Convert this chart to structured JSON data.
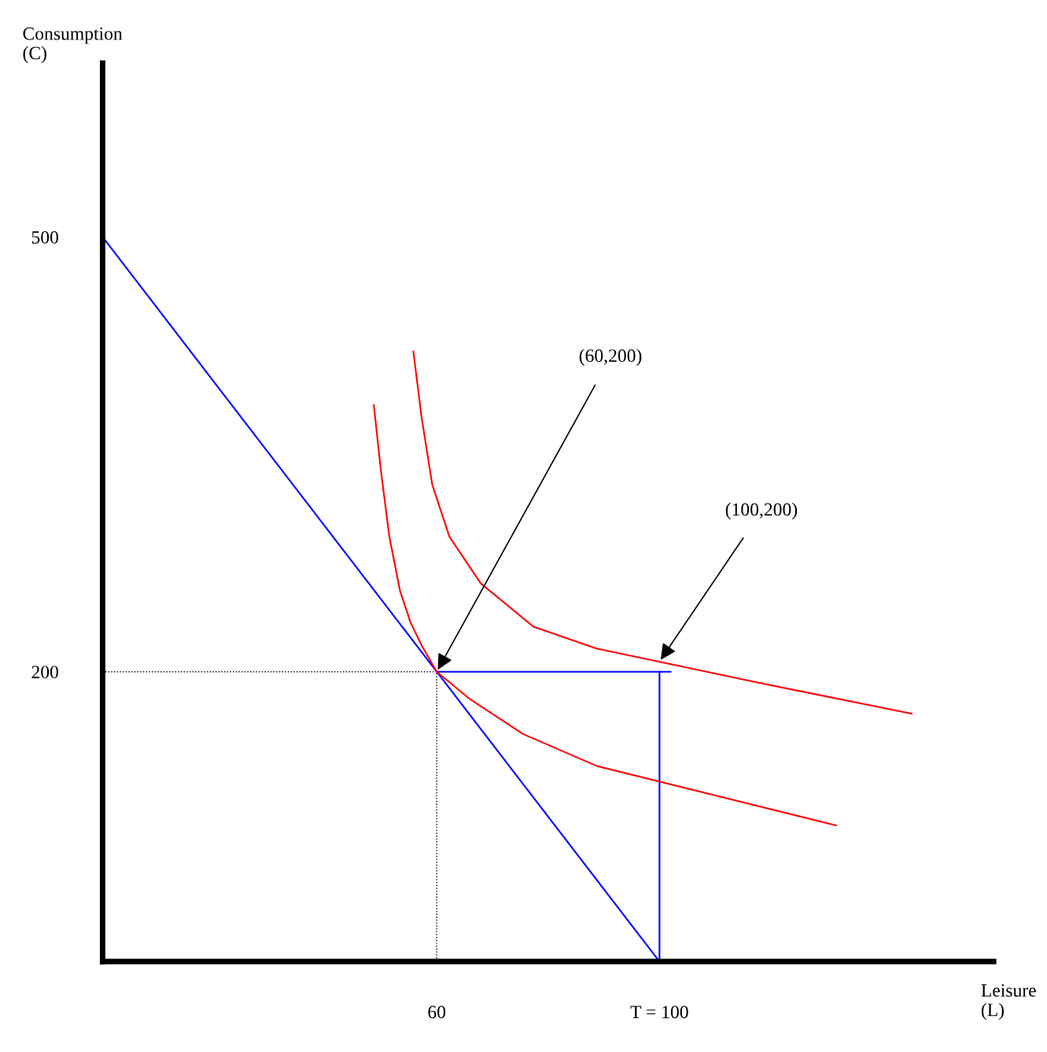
{
  "chart_data": {
    "type": "line",
    "xlabel": "Leisure\n(L)",
    "ylabel": "Consumption\n(C)",
    "xlim": [
      0,
      160
    ],
    "ylim": [
      0,
      620
    ],
    "xticks": [
      60,
      {
        "value": 100,
        "label": "T = 100"
      }
    ],
    "yticks": [
      200,
      500
    ],
    "grid": false,
    "marker": "none",
    "series": [
      {
        "color": "#0000ff",
        "line_style": "solid",
        "x": [
          0,
          100
        ],
        "values": [
          500,
          0
        ]
      },
      {
        "color": "#0000ff",
        "line_style": "solid",
        "x": [
          60,
          102
        ],
        "values": [
          200,
          200
        ]
      },
      {
        "color": "#0000ff",
        "line_style": "solid",
        "x": [
          100,
          100
        ],
        "values": [
          0,
          200
        ]
      },
      {
        "color": "#000000",
        "line_style": "dotted",
        "x": [
          0,
          60,
          60
        ],
        "values": [
          200,
          200,
          0
        ]
      },
      {
        "color": "#ff0000",
        "line_style": "solid",
        "x": [
          48.7,
          50.0,
          51.5,
          53.4,
          55.3,
          57.3,
          60,
          66.0,
          75.5,
          88.7,
          107.5,
          131.7
        ],
        "values": [
          384,
          338,
          293,
          256,
          234,
          218,
          200,
          181,
          157,
          135,
          117,
          94
        ]
      },
      {
        "color": "#ff0000",
        "line_style": "solid",
        "x": [
          55.8,
          57.3,
          59.2,
          62.3,
          67.9,
          77.4,
          88.7,
          102.3,
          117,
          145.3
        ],
        "values": [
          421,
          375,
          329,
          293,
          261,
          231,
          216,
          205,
          193,
          171
        ]
      }
    ],
    "annotations": [
      {
        "text": "(60,200)",
        "x": 60,
        "y": 200
      },
      {
        "text": "(100,200)",
        "x": 100,
        "y": 207
      }
    ]
  }
}
